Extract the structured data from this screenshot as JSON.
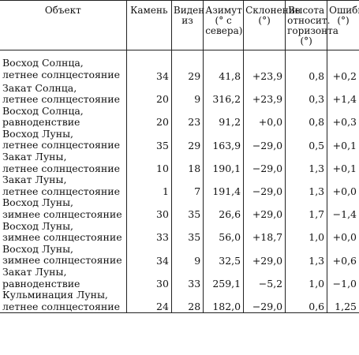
{
  "table": {
    "headers": {
      "object": "Объект",
      "stone": "Камень",
      "visible_from": "Виден из",
      "azimuth": "Азимут (° с севера)",
      "declination": "Склонение (°)",
      "horizon_height": "Высота относит. горизонта (°)",
      "error": "Ошибка (°)"
    },
    "rows": [
      {
        "object_line1": "Восход Солнца,",
        "object_line2": "летнее солнцестояние",
        "stone": "34",
        "visible_from": "29",
        "azimuth": "41,8",
        "declination": "+23,9",
        "horizon_height": "0,8",
        "error": "+0,2"
      },
      {
        "object_line1": "Закат Солнца,",
        "object_line2": "летнее солнцестояние",
        "stone": "20",
        "visible_from": "9",
        "azimuth": "316,2",
        "declination": "+23,9",
        "horizon_height": "0,3",
        "error": "+1,4"
      },
      {
        "object_line1": "Восход Солнца,",
        "object_line2": "равноденствие",
        "stone": "20",
        "visible_from": "23",
        "azimuth": "91,2",
        "declination": "+0,0",
        "horizon_height": "0,8",
        "error": "+0,3"
      },
      {
        "object_line1": "Восход Луны,",
        "object_line2": "летнее солнцестояние",
        "stone": "35",
        "visible_from": "29",
        "azimuth": "163,9",
        "declination": "−29,0",
        "horizon_height": "0,5",
        "error": "+0,1"
      },
      {
        "object_line1": "Закат Луны,",
        "object_line2": "летнее солнцестояние",
        "stone": "10",
        "visible_from": "18",
        "azimuth": "190,1",
        "declination": "−29,0",
        "horizon_height": "1,3",
        "error": "+0,1"
      },
      {
        "object_line1": "Закат Луны,",
        "object_line2": "летнее солнцестояние",
        "stone": "1",
        "visible_from": "7",
        "azimuth": "191,4",
        "declination": "−29,0",
        "horizon_height": "1,3",
        "error": "+0,0"
      },
      {
        "object_line1": "Восход Луны,",
        "object_line2": "зимнее солнцестояние",
        "stone": "30",
        "visible_from": "35",
        "azimuth": "26,6",
        "declination": "+29,0",
        "horizon_height": "1,7",
        "error": "−1,4"
      },
      {
        "object_line1": "Восход Луны,",
        "object_line2": "зимнее солнцестояние",
        "stone": "33",
        "visible_from": "35",
        "azimuth": "56,0",
        "declination": "+18,7",
        "horizon_height": "1,0",
        "error": "+0,0"
      },
      {
        "object_line1": "Восход Луны,",
        "object_line2": "зимнее солнцестояние",
        "stone": "34",
        "visible_from": "9",
        "azimuth": "32,5",
        "declination": "+29,0",
        "horizon_height": "1,3",
        "error": "+0,6"
      },
      {
        "object_line1": "Закат Луны,",
        "object_line2": "равноденствие",
        "stone": "30",
        "visible_from": "33",
        "azimuth": "259,1",
        "declination": "−5,2",
        "horizon_height": "1,0",
        "error": "−1,0"
      },
      {
        "object_line1": "Кульминация Луны,",
        "object_line2": "летнее солнцестояние",
        "stone": "24",
        "visible_from": "28",
        "azimuth": "182,0",
        "declination": "−29,0",
        "horizon_height": "0,6",
        "error": "1,25"
      }
    ]
  }
}
